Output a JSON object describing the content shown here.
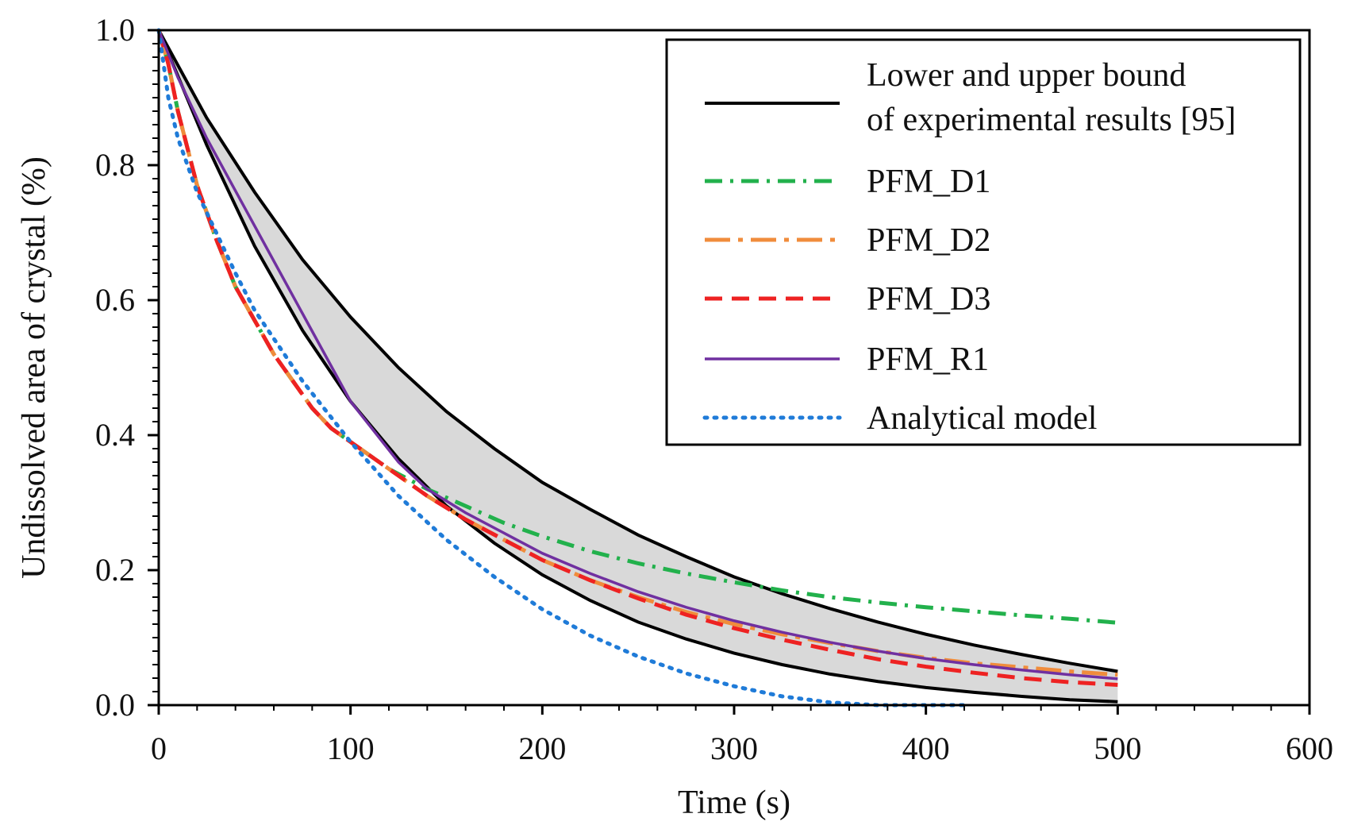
{
  "chart_data": {
    "type": "line",
    "title": "",
    "xlabel": "Time (s)",
    "ylabel": "Undissolved area of crystal (%)",
    "xlim": [
      0,
      600
    ],
    "ylim": [
      0,
      1.0
    ],
    "xticks": [
      0,
      100,
      200,
      300,
      400,
      500,
      600
    ],
    "yticks": [
      0,
      0.2,
      0.4,
      0.6,
      0.8,
      1.0
    ],
    "xtick_labels": [
      "0",
      "100",
      "200",
      "300",
      "400",
      "500",
      "600"
    ],
    "ytick_labels": [
      "0.0",
      "0.2",
      "0.4",
      "0.6",
      "0.8",
      "1.0"
    ],
    "grid": false,
    "legend_position": "top-right",
    "band": {
      "label_lines": [
        "Lower and upper bound",
        "of experimental results [95]"
      ],
      "color": "#000000",
      "fill": "#d9d9d9",
      "x": [
        0,
        25,
        50,
        75,
        100,
        125,
        150,
        175,
        200,
        225,
        250,
        275,
        300,
        325,
        350,
        375,
        400,
        425,
        450,
        475,
        500
      ],
      "upper": [
        1.0,
        0.87,
        0.76,
        0.66,
        0.575,
        0.5,
        0.435,
        0.38,
        0.33,
        0.29,
        0.252,
        0.22,
        0.19,
        0.165,
        0.143,
        0.123,
        0.105,
        0.089,
        0.075,
        0.062,
        0.05
      ],
      "lower": [
        1.0,
        0.83,
        0.68,
        0.555,
        0.45,
        0.365,
        0.295,
        0.24,
        0.193,
        0.155,
        0.123,
        0.098,
        0.077,
        0.06,
        0.046,
        0.035,
        0.026,
        0.019,
        0.013,
        0.008,
        0.005
      ]
    },
    "series": [
      {
        "name": "PFM_D1",
        "color": "#22b14c",
        "dash": "dashdot",
        "x": [
          0,
          5,
          10,
          20,
          30,
          40,
          50,
          60,
          70,
          80,
          90,
          100,
          120,
          140,
          160,
          180,
          200,
          225,
          250,
          275,
          300,
          325,
          350,
          375,
          400,
          425,
          450,
          475,
          500
        ],
        "y": [
          1.0,
          0.95,
          0.88,
          0.77,
          0.69,
          0.62,
          0.57,
          0.52,
          0.48,
          0.44,
          0.41,
          0.39,
          0.35,
          0.32,
          0.295,
          0.27,
          0.25,
          0.228,
          0.21,
          0.195,
          0.182,
          0.17,
          0.16,
          0.152,
          0.145,
          0.139,
          0.133,
          0.128,
          0.122
        ]
      },
      {
        "name": "PFM_D2",
        "color": "#f08c3c",
        "dash": "longdashdot",
        "x": [
          0,
          5,
          10,
          20,
          30,
          40,
          50,
          60,
          70,
          80,
          90,
          100,
          120,
          140,
          160,
          180,
          200,
          225,
          250,
          275,
          300,
          325,
          350,
          375,
          400,
          425,
          450,
          475,
          500
        ],
        "y": [
          1.0,
          0.95,
          0.88,
          0.77,
          0.69,
          0.62,
          0.57,
          0.52,
          0.48,
          0.44,
          0.41,
          0.39,
          0.35,
          0.31,
          0.275,
          0.245,
          0.215,
          0.185,
          0.16,
          0.138,
          0.12,
          0.105,
          0.092,
          0.08,
          0.07,
          0.062,
          0.056,
          0.05,
          0.045
        ]
      },
      {
        "name": "PFM_D3",
        "color": "#ee2222",
        "dash": "dash",
        "x": [
          0,
          5,
          10,
          20,
          30,
          40,
          50,
          60,
          70,
          80,
          90,
          100,
          120,
          140,
          160,
          180,
          200,
          225,
          250,
          275,
          300,
          325,
          350,
          375,
          400,
          425,
          450,
          475,
          500
        ],
        "y": [
          1.0,
          0.95,
          0.88,
          0.77,
          0.69,
          0.62,
          0.57,
          0.52,
          0.48,
          0.44,
          0.41,
          0.39,
          0.35,
          0.31,
          0.275,
          0.245,
          0.215,
          0.185,
          0.158,
          0.134,
          0.114,
          0.097,
          0.082,
          0.068,
          0.057,
          0.048,
          0.04,
          0.034,
          0.03
        ]
      },
      {
        "name": "PFM_R1",
        "color": "#7030a0",
        "dash": "solid",
        "x": [
          0,
          10,
          25,
          50,
          75,
          100,
          125,
          140,
          160,
          180,
          200,
          225,
          250,
          275,
          300,
          325,
          350,
          375,
          400,
          425,
          450,
          475,
          500
        ],
        "y": [
          1.0,
          0.93,
          0.84,
          0.71,
          0.58,
          0.45,
          0.36,
          0.32,
          0.285,
          0.255,
          0.225,
          0.195,
          0.168,
          0.145,
          0.125,
          0.108,
          0.093,
          0.08,
          0.069,
          0.06,
          0.052,
          0.045,
          0.039
        ]
      },
      {
        "name": "Analytical model",
        "color": "#1f7bd8",
        "dash": "dot",
        "x": [
          0,
          5,
          10,
          20,
          30,
          40,
          50,
          75,
          100,
          125,
          150,
          175,
          200,
          225,
          250,
          275,
          300,
          325,
          350,
          375,
          400,
          420
        ],
        "y": [
          1.0,
          0.9,
          0.84,
          0.76,
          0.7,
          0.64,
          0.585,
          0.48,
          0.39,
          0.31,
          0.245,
          0.19,
          0.142,
          0.103,
          0.072,
          0.047,
          0.028,
          0.013,
          0.004,
          0.0,
          0.0,
          0.0
        ]
      }
    ]
  }
}
